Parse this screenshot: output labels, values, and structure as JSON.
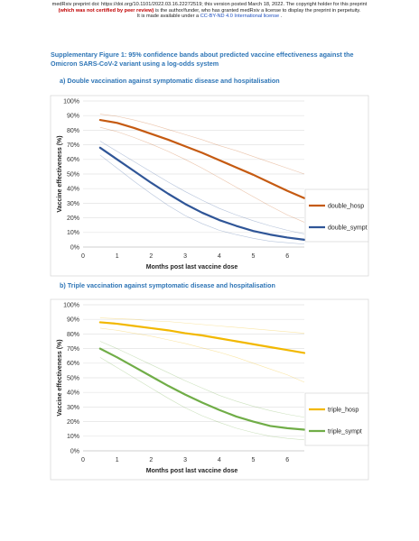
{
  "header": {
    "line1": "medRxiv preprint doi: https://doi.org/10.1101/2022.03.16.22272519; this version posted March 18, 2022. The copyright holder for this preprint",
    "line2_bold": "(which was not certified by peer review)",
    "line2_rest": " is the author/funder, who has granted medRxiv a license to display the preprint in perpetuity.",
    "line3_pre": "It is made available under a ",
    "line3_link": "CC-BY-ND 4.0 International license",
    "line3_post": " ."
  },
  "figure_title": "Supplementary Figure 1: 95% confidence bands about predicted vaccine effectiveness against the Omicron SARS-CoV-2 variant using a log-odds system",
  "sections": [
    {
      "heading": "a)   Double vaccination against symptomatic disease and hospitalisation"
    },
    {
      "heading": "b)   Triple vaccination against symptomatic disease and hospitalisation"
    }
  ],
  "chart_data": [
    {
      "type": "line",
      "xlabel": "Months post last vaccine dose",
      "ylabel": "Vaccine effectiveness (%)",
      "xlim": [
        0,
        6.5
      ],
      "ylim": [
        0,
        100
      ],
      "x_ticks": [
        "0",
        "1",
        "2",
        "3",
        "4",
        "5",
        "6"
      ],
      "y_ticks": [
        "0%",
        "10%",
        "20%",
        "30%",
        "40%",
        "50%",
        "60%",
        "70%",
        "80%",
        "90%",
        "100%"
      ],
      "grid": true,
      "legend_position": "right",
      "series": [
        {
          "name": "double_hosp",
          "color": "#c55a11",
          "x": [
            0.5,
            1,
            1.5,
            2,
            2.5,
            3,
            3.5,
            4,
            4.5,
            5,
            5.5,
            6,
            6.5
          ],
          "y": [
            87,
            85,
            81.5,
            77.5,
            73.5,
            69,
            64.5,
            59.5,
            54.5,
            49.5,
            44,
            38.5,
            33.5
          ],
          "ci_lower": [
            82,
            79,
            75,
            70.5,
            65.5,
            60,
            54,
            47.5,
            41,
            34.5,
            28,
            22,
            17
          ],
          "ci_upper": [
            91,
            89.5,
            87,
            84,
            80.5,
            77,
            73.5,
            69.5,
            66,
            62,
            58,
            54,
            50
          ]
        },
        {
          "name": "double_sympt",
          "color": "#2f5597",
          "x": [
            0.5,
            1,
            1.5,
            2,
            2.5,
            3,
            3.5,
            4,
            4.5,
            5,
            5.5,
            6,
            6.5
          ],
          "y": [
            68,
            60,
            52,
            44,
            36.5,
            29.5,
            23.5,
            18.5,
            14.5,
            11,
            8.5,
            6.5,
            5
          ],
          "ci_lower": [
            63,
            54,
            45,
            36.5,
            28.5,
            21.5,
            16,
            11.5,
            8.5,
            6,
            4,
            3,
            2
          ],
          "ci_upper": [
            72.5,
            65.5,
            58.5,
            51.5,
            44.5,
            38,
            32,
            26.5,
            22,
            18,
            14.5,
            11.5,
            9
          ]
        }
      ]
    },
    {
      "type": "line",
      "xlabel": "Months post last vaccine dose",
      "ylabel": "Vaccine effectiveness (%)",
      "xlim": [
        0,
        6.5
      ],
      "ylim": [
        0,
        100
      ],
      "x_ticks": [
        "0",
        "1",
        "2",
        "3",
        "4",
        "5",
        "6"
      ],
      "y_ticks": [
        "0%",
        "10%",
        "20%",
        "30%",
        "40%",
        "50%",
        "60%",
        "70%",
        "80%",
        "90%",
        "100%"
      ],
      "grid": true,
      "legend_position": "right",
      "series": [
        {
          "name": "triple_hosp",
          "color": "#f2b800",
          "x": [
            0.5,
            1,
            1.5,
            2,
            2.5,
            3,
            3.5,
            4,
            4.5,
            5,
            5.5,
            6,
            6.5
          ],
          "y": [
            88,
            87,
            85.5,
            84,
            82.5,
            80.5,
            79,
            77,
            75,
            73,
            71,
            69,
            67
          ],
          "ci_lower": [
            84,
            82.5,
            80.5,
            78.5,
            76,
            73.5,
            70.5,
            67.5,
            64,
            60,
            56,
            52,
            47
          ],
          "ci_upper": [
            91,
            90.5,
            90,
            89,
            88.5,
            87.5,
            86.5,
            85.5,
            84.5,
            83.5,
            82.5,
            81.5,
            80.5
          ]
        },
        {
          "name": "triple_sympt",
          "color": "#70ad47",
          "x": [
            0.5,
            1,
            1.5,
            2,
            2.5,
            3,
            3.5,
            4,
            4.5,
            5,
            5.5,
            6,
            6.5
          ],
          "y": [
            70,
            64,
            57.5,
            51,
            44.5,
            38.5,
            33,
            28,
            23.5,
            20,
            17,
            15.5,
            14.5
          ],
          "ci_lower": [
            64,
            57,
            50,
            43,
            36,
            29.5,
            24,
            19.5,
            15.5,
            12.5,
            10,
            8.5,
            7.5
          ],
          "ci_upper": [
            75,
            70,
            64.5,
            59,
            53.5,
            48,
            43,
            38,
            34,
            30.5,
            27.5,
            25,
            23
          ]
        }
      ]
    }
  ]
}
